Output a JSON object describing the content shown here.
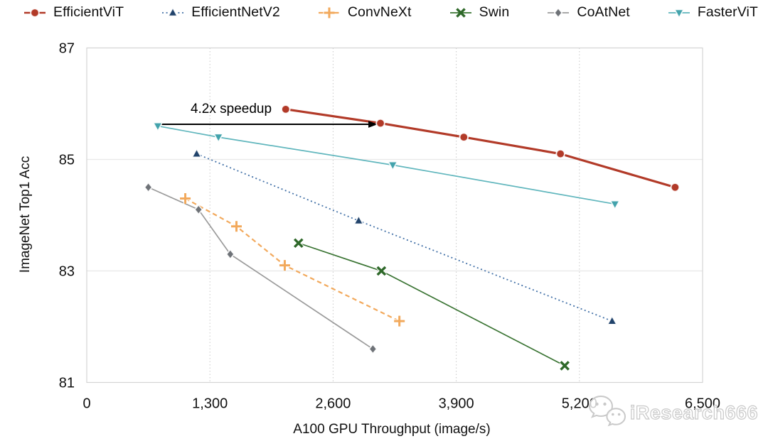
{
  "watermark": {
    "text": "iResearch666",
    "icon": "wechat-icon"
  },
  "chart_data": {
    "type": "line",
    "title": "",
    "xlabel": "A100 GPU Throughput (image/s)",
    "ylabel": "ImageNet Top1 Acc",
    "xlim": [
      0,
      6500
    ],
    "ylim": [
      81,
      87
    ],
    "xticks": {
      "values": [
        0,
        1300,
        2600,
        3900,
        5200,
        6500
      ],
      "labels": [
        "0",
        "1,300",
        "2,600",
        "3,900",
        "5,200",
        "6,500"
      ]
    },
    "yticks": {
      "values": [
        81,
        83,
        85,
        87
      ],
      "labels": [
        "81",
        "83",
        "85",
        "87"
      ]
    },
    "grid": {
      "horizontal_at": [
        83,
        85
      ],
      "vertical_dotted_at": [
        1300,
        2600,
        3900,
        5200
      ]
    },
    "legend_position": "top",
    "annotation": {
      "text": "4.2x speedup",
      "arrow_from": {
        "throughput": 780,
        "acc": 85.63
      },
      "arrow_to": {
        "throughput": 3070,
        "acc": 85.63
      },
      "text_at": {
        "throughput": 1525,
        "acc": 85.86
      }
    },
    "series": [
      {
        "name": "EfficientViT",
        "marker": "circle",
        "line_style": "solid",
        "line_width": 3.2,
        "color": "#b23a28",
        "marker_color": "#b23a28",
        "points": [
          [
            2100,
            85.9
          ],
          [
            3100,
            85.65
          ],
          [
            3980,
            85.4
          ],
          [
            5000,
            85.1
          ],
          [
            6210,
            84.5
          ]
        ]
      },
      {
        "name": "EfficientNetV2",
        "marker": "triangle-up",
        "line_style": "dotted",
        "line_width": 1.8,
        "color": "#4472a8",
        "marker_color": "#21436b",
        "points": [
          [
            1160,
            85.1
          ],
          [
            2870,
            83.9
          ],
          [
            5545,
            82.1
          ]
        ]
      },
      {
        "name": "ConvNeXt",
        "marker": "plus",
        "line_style": "dashed",
        "line_width": 2.2,
        "color": "#f2a95c",
        "marker_color": "#f2a95c",
        "points": [
          [
            1040,
            84.3
          ],
          [
            1580,
            83.8
          ],
          [
            2090,
            83.1
          ],
          [
            3300,
            82.1
          ]
        ]
      },
      {
        "name": "Swin",
        "marker": "x",
        "line_style": "solid",
        "line_width": 1.7,
        "color": "#3a7433",
        "marker_color": "#2e6829",
        "points": [
          [
            2235,
            83.5
          ],
          [
            3110,
            83.0
          ],
          [
            5045,
            81.3
          ]
        ]
      },
      {
        "name": "CoAtNet",
        "marker": "diamond",
        "line_style": "solid",
        "line_width": 1.7,
        "color": "#9b9b9b",
        "marker_color": "#6e7277",
        "points": [
          [
            650,
            84.5
          ],
          [
            1180,
            84.1
          ],
          [
            1515,
            83.3
          ],
          [
            3020,
            81.6
          ]
        ]
      },
      {
        "name": "FasterViT",
        "marker": "triangle-down",
        "line_style": "solid",
        "line_width": 1.7,
        "color": "#60b6bd",
        "marker_color": "#43a3ac",
        "points": [
          [
            750,
            85.6
          ],
          [
            1390,
            85.4
          ],
          [
            3230,
            84.9
          ],
          [
            5575,
            84.2
          ]
        ]
      }
    ]
  }
}
